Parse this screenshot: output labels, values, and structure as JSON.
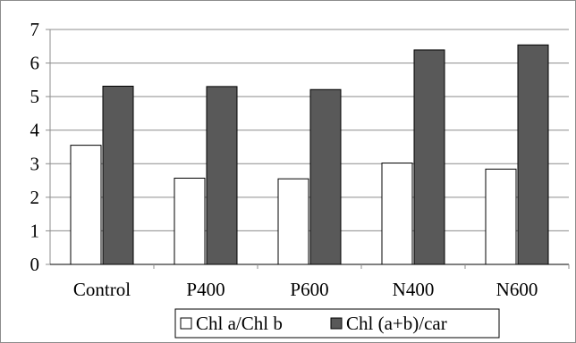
{
  "chart_data": {
    "type": "bar",
    "title": "",
    "xlabel": "",
    "ylabel": "",
    "categories": [
      "Control",
      "P400",
      "P600",
      "N400",
      "N600"
    ],
    "ylim": [
      0,
      7
    ],
    "yticks": [
      0,
      1,
      2,
      3,
      4,
      5,
      6,
      7
    ],
    "grid": true,
    "legend_position": "bottom",
    "series": [
      {
        "name": "Chl a/Chl b",
        "values": [
          3.55,
          2.57,
          2.55,
          3.02,
          2.84
        ],
        "fill": "#ffffff",
        "stroke": "#000000"
      },
      {
        "name": "Chl (a+b)/car",
        "values": [
          5.31,
          5.3,
          5.21,
          6.39,
          6.54
        ],
        "fill": "#595959",
        "stroke": "#000000"
      }
    ]
  }
}
